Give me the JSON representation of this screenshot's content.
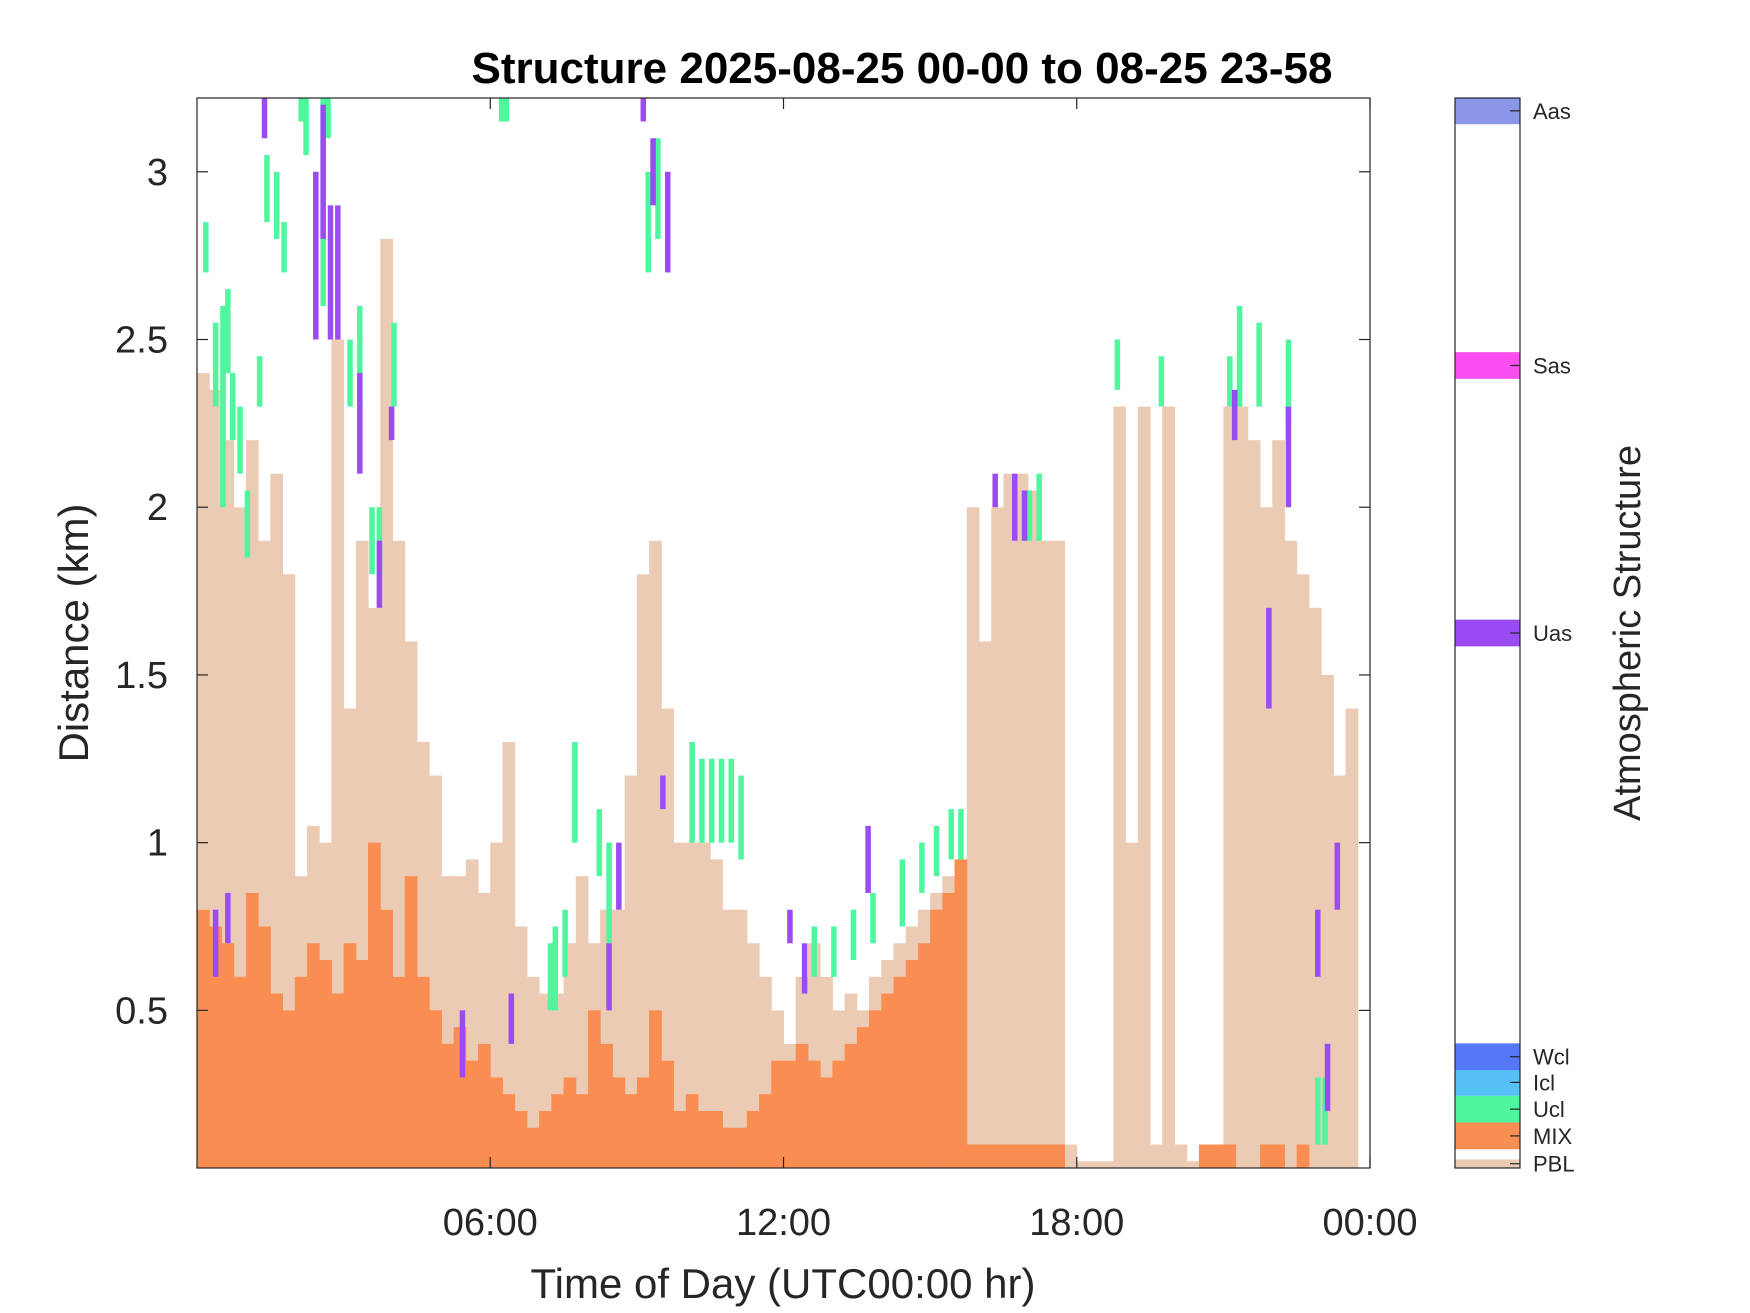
{
  "chart_data": {
    "type": "heatmap",
    "title": "Structure 2025-08-25 00-00 to 08-25 23-58",
    "xlabel": "Time of Day (UTC00:00 hr)",
    "ylabel": "Distance (km)",
    "xlim": [
      0,
      24
    ],
    "ylim": [
      0.03,
      3.22
    ],
    "x_ticks": [
      {
        "value": 6,
        "label": "06:00"
      },
      {
        "value": 12,
        "label": "12:00"
      },
      {
        "value": 18,
        "label": "18:00"
      },
      {
        "value": 24,
        "label": "00:00"
      }
    ],
    "y_ticks": [
      {
        "value": 0.5,
        "label": "0.5"
      },
      {
        "value": 1,
        "label": "1"
      },
      {
        "value": 1.5,
        "label": "1.5"
      },
      {
        "value": 2,
        "label": "2"
      },
      {
        "value": 2.5,
        "label": "2.5"
      },
      {
        "value": 3,
        "label": "3"
      }
    ],
    "colorbar": {
      "label": "Atmospheric Structure",
      "classes": [
        {
          "code": "PBL",
          "color": "#EBCBB4"
        },
        {
          "code": "MIX",
          "color": "#F98D52"
        },
        {
          "code": "Ucl",
          "color": "#4EF79E"
        },
        {
          "code": "Icl",
          "color": "#55C1F7"
        },
        {
          "code": "Wcl",
          "color": "#5478F7"
        },
        {
          "code": "Uas",
          "color": "#9B4BF4"
        },
        {
          "code": "Sas",
          "color": "#FA4FF0"
        },
        {
          "code": "Aas",
          "color": "#8A97E7"
        }
      ]
    },
    "pbl_top_km": [
      [
        0.0,
        2.4
      ],
      [
        0.25,
        2.35
      ],
      [
        0.5,
        2.2
      ],
      [
        0.75,
        2.0
      ],
      [
        1.0,
        2.2
      ],
      [
        1.25,
        1.9
      ],
      [
        1.5,
        2.1
      ],
      [
        1.75,
        1.8
      ],
      [
        2.0,
        0.9
      ],
      [
        2.25,
        1.05
      ],
      [
        2.5,
        1.0
      ],
      [
        2.75,
        2.5
      ],
      [
        3.0,
        1.4
      ],
      [
        3.25,
        1.9
      ],
      [
        3.5,
        1.7
      ],
      [
        3.75,
        2.8
      ],
      [
        4.0,
        1.9
      ],
      [
        4.25,
        1.6
      ],
      [
        4.5,
        1.3
      ],
      [
        4.75,
        1.2
      ],
      [
        5.0,
        0.9
      ],
      [
        5.25,
        0.9
      ],
      [
        5.5,
        0.95
      ],
      [
        5.75,
        0.85
      ],
      [
        6.0,
        1.0
      ],
      [
        6.25,
        1.3
      ],
      [
        6.5,
        0.75
      ],
      [
        6.75,
        0.6
      ],
      [
        7.0,
        0.55
      ],
      [
        7.25,
        0.55
      ],
      [
        7.5,
        0.7
      ],
      [
        7.75,
        0.9
      ],
      [
        8.0,
        0.7
      ],
      [
        8.25,
        0.8
      ],
      [
        8.5,
        0.8
      ],
      [
        8.75,
        1.2
      ],
      [
        9.0,
        1.8
      ],
      [
        9.25,
        1.9
      ],
      [
        9.5,
        1.4
      ],
      [
        9.75,
        1.0
      ],
      [
        10.0,
        1.0
      ],
      [
        10.25,
        1.0
      ],
      [
        10.5,
        0.95
      ],
      [
        10.75,
        0.8
      ],
      [
        11.0,
        0.8
      ],
      [
        11.25,
        0.7
      ],
      [
        11.5,
        0.6
      ],
      [
        11.75,
        0.5
      ],
      [
        12.0,
        0.4
      ],
      [
        12.25,
        0.6
      ],
      [
        12.5,
        0.7
      ],
      [
        12.75,
        0.6
      ],
      [
        13.0,
        0.5
      ],
      [
        13.25,
        0.55
      ],
      [
        13.5,
        0.5
      ],
      [
        13.75,
        0.6
      ],
      [
        14.0,
        0.65
      ],
      [
        14.25,
        0.7
      ],
      [
        14.5,
        0.75
      ],
      [
        14.75,
        0.8
      ],
      [
        15.0,
        0.85
      ],
      [
        15.25,
        0.9
      ],
      [
        15.5,
        0.95
      ],
      [
        15.75,
        2.0
      ],
      [
        16.0,
        1.6
      ],
      [
        16.25,
        2.0
      ],
      [
        16.5,
        2.1
      ],
      [
        16.75,
        2.1
      ],
      [
        17.0,
        2.05
      ],
      [
        17.25,
        1.9
      ],
      [
        17.5,
        1.9
      ],
      [
        17.75,
        0.1
      ],
      [
        18.0,
        0.05
      ],
      [
        18.25,
        0.05
      ],
      [
        18.5,
        0.05
      ],
      [
        18.75,
        2.3
      ],
      [
        19.0,
        1.0
      ],
      [
        19.25,
        2.3
      ],
      [
        19.5,
        0.1
      ],
      [
        19.75,
        2.3
      ],
      [
        20.0,
        0.1
      ],
      [
        20.25,
        0.05
      ],
      [
        20.5,
        0.1
      ],
      [
        20.75,
        0.1
      ],
      [
        21.0,
        2.3
      ],
      [
        21.25,
        2.3
      ],
      [
        21.5,
        2.2
      ],
      [
        21.75,
        2.0
      ],
      [
        22.0,
        2.2
      ],
      [
        22.25,
        1.9
      ],
      [
        22.5,
        1.8
      ],
      [
        22.75,
        1.7
      ],
      [
        23.0,
        1.5
      ],
      [
        23.25,
        1.2
      ],
      [
        23.5,
        1.4
      ]
    ],
    "mix_top_km": [
      [
        0.0,
        0.8
      ],
      [
        0.25,
        0.75
      ],
      [
        0.5,
        0.7
      ],
      [
        0.75,
        0.6
      ],
      [
        1.0,
        0.85
      ],
      [
        1.25,
        0.75
      ],
      [
        1.5,
        0.55
      ],
      [
        1.75,
        0.5
      ],
      [
        2.0,
        0.6
      ],
      [
        2.25,
        0.7
      ],
      [
        2.5,
        0.65
      ],
      [
        2.75,
        0.55
      ],
      [
        3.0,
        0.7
      ],
      [
        3.25,
        0.65
      ],
      [
        3.5,
        1.0
      ],
      [
        3.75,
        0.8
      ],
      [
        4.0,
        0.6
      ],
      [
        4.25,
        0.9
      ],
      [
        4.5,
        0.6
      ],
      [
        4.75,
        0.5
      ],
      [
        5.0,
        0.4
      ],
      [
        5.25,
        0.45
      ],
      [
        5.5,
        0.35
      ],
      [
        5.75,
        0.4
      ],
      [
        6.0,
        0.3
      ],
      [
        6.25,
        0.25
      ],
      [
        6.5,
        0.2
      ],
      [
        6.75,
        0.15
      ],
      [
        7.0,
        0.2
      ],
      [
        7.25,
        0.25
      ],
      [
        7.5,
        0.3
      ],
      [
        7.75,
        0.25
      ],
      [
        8.0,
        0.5
      ],
      [
        8.25,
        0.4
      ],
      [
        8.5,
        0.3
      ],
      [
        8.75,
        0.25
      ],
      [
        9.0,
        0.3
      ],
      [
        9.25,
        0.5
      ],
      [
        9.5,
        0.35
      ],
      [
        9.75,
        0.2
      ],
      [
        10.0,
        0.25
      ],
      [
        10.25,
        0.2
      ],
      [
        10.5,
        0.2
      ],
      [
        10.75,
        0.15
      ],
      [
        11.0,
        0.15
      ],
      [
        11.25,
        0.2
      ],
      [
        11.5,
        0.25
      ],
      [
        11.75,
        0.35
      ],
      [
        12.0,
        0.35
      ],
      [
        12.25,
        0.4
      ],
      [
        12.5,
        0.35
      ],
      [
        12.75,
        0.3
      ],
      [
        13.0,
        0.35
      ],
      [
        13.25,
        0.4
      ],
      [
        13.5,
        0.45
      ],
      [
        13.75,
        0.5
      ],
      [
        14.0,
        0.55
      ],
      [
        14.25,
        0.6
      ],
      [
        14.5,
        0.65
      ],
      [
        14.75,
        0.7
      ],
      [
        15.0,
        0.8
      ],
      [
        15.25,
        0.85
      ],
      [
        15.5,
        0.95
      ],
      [
        15.75,
        0.1
      ],
      [
        16.0,
        0.1
      ],
      [
        16.25,
        0.1
      ],
      [
        16.5,
        0.1
      ],
      [
        16.75,
        0.1
      ],
      [
        17.0,
        0.1
      ],
      [
        17.25,
        0.1
      ],
      [
        17.5,
        0.1
      ],
      [
        17.75,
        0.0
      ],
      [
        18.0,
        0.0
      ],
      [
        18.25,
        0.0
      ],
      [
        18.5,
        0.0
      ],
      [
        18.75,
        0.0
      ],
      [
        19.0,
        0.0
      ],
      [
        19.25,
        0.0
      ],
      [
        19.5,
        0.0
      ],
      [
        19.75,
        0.0
      ],
      [
        20.0,
        0.0
      ],
      [
        20.25,
        0.0
      ],
      [
        20.5,
        0.1
      ],
      [
        20.75,
        0.1
      ],
      [
        21.0,
        0.1
      ],
      [
        21.25,
        0.0
      ],
      [
        21.5,
        0.0
      ],
      [
        21.75,
        0.1
      ],
      [
        22.0,
        0.1
      ],
      [
        22.25,
        0.0
      ],
      [
        22.5,
        0.1
      ],
      [
        22.75,
        0.0
      ],
      [
        23.0,
        0.0
      ],
      [
        23.25,
        0.0
      ],
      [
        23.5,
        0.0
      ]
    ],
    "ucl_segments": [
      [
        0.05,
        2.7,
        2.85
      ],
      [
        0.25,
        2.3,
        2.55
      ],
      [
        0.4,
        2.0,
        2.6
      ],
      [
        0.5,
        2.4,
        2.65
      ],
      [
        0.6,
        2.2,
        2.4
      ],
      [
        0.75,
        2.1,
        2.3
      ],
      [
        0.9,
        1.85,
        2.05
      ],
      [
        1.15,
        2.3,
        2.45
      ],
      [
        1.3,
        2.85,
        3.05
      ],
      [
        1.5,
        2.8,
        3.0
      ],
      [
        1.65,
        2.7,
        2.85
      ],
      [
        2.0,
        3.15,
        3.22
      ],
      [
        2.1,
        3.05,
        3.22
      ],
      [
        2.45,
        2.6,
        3.22
      ],
      [
        2.55,
        3.1,
        3.22
      ],
      [
        3.0,
        2.3,
        2.5
      ],
      [
        3.2,
        2.3,
        2.6
      ],
      [
        3.45,
        1.8,
        2.0
      ],
      [
        3.6,
        1.8,
        2.0
      ],
      [
        3.9,
        2.3,
        2.55
      ],
      [
        6.1,
        3.15,
        3.22
      ],
      [
        6.2,
        3.15,
        3.22
      ],
      [
        7.1,
        0.5,
        0.7
      ],
      [
        7.2,
        0.5,
        0.75
      ],
      [
        7.4,
        0.6,
        0.8
      ],
      [
        7.6,
        1.0,
        1.3
      ],
      [
        8.1,
        0.9,
        1.1
      ],
      [
        8.3,
        0.7,
        1.0
      ],
      [
        9.1,
        2.7,
        3.0
      ],
      [
        9.3,
        2.8,
        3.1
      ],
      [
        10.0,
        1.0,
        1.3
      ],
      [
        10.2,
        1.0,
        1.25
      ],
      [
        10.4,
        1.0,
        1.25
      ],
      [
        10.6,
        1.0,
        1.25
      ],
      [
        10.8,
        1.0,
        1.25
      ],
      [
        11.0,
        0.95,
        1.2
      ],
      [
        12.5,
        0.6,
        0.75
      ],
      [
        12.9,
        0.6,
        0.75
      ],
      [
        13.3,
        0.65,
        0.8
      ],
      [
        13.7,
        0.7,
        0.85
      ],
      [
        14.3,
        0.75,
        0.95
      ],
      [
        14.7,
        0.85,
        1.0
      ],
      [
        15.0,
        0.9,
        1.05
      ],
      [
        15.3,
        0.95,
        1.1
      ],
      [
        15.5,
        0.95,
        1.1
      ],
      [
        16.9,
        1.9,
        2.05
      ],
      [
        17.1,
        1.9,
        2.1
      ],
      [
        18.7,
        2.35,
        2.5
      ],
      [
        19.6,
        2.3,
        2.45
      ],
      [
        21.0,
        2.3,
        2.45
      ],
      [
        21.2,
        2.3,
        2.6
      ],
      [
        21.6,
        2.3,
        2.55
      ],
      [
        22.2,
        2.25,
        2.5
      ],
      [
        22.8,
        0.1,
        0.3
      ],
      [
        22.95,
        0.1,
        0.3
      ]
    ],
    "uas_segments": [
      [
        0.25,
        0.6,
        0.8
      ],
      [
        0.5,
        0.7,
        0.85
      ],
      [
        1.25,
        3.1,
        3.22
      ],
      [
        2.3,
        2.5,
        3.0
      ],
      [
        2.45,
        2.8,
        3.2
      ],
      [
        2.6,
        2.5,
        2.9
      ],
      [
        2.75,
        2.5,
        2.9
      ],
      [
        3.2,
        2.1,
        2.4
      ],
      [
        3.6,
        1.7,
        1.9
      ],
      [
        3.85,
        2.2,
        2.3
      ],
      [
        5.3,
        0.3,
        0.5
      ],
      [
        6.3,
        0.4,
        0.55
      ],
      [
        8.3,
        0.5,
        0.7
      ],
      [
        8.5,
        0.8,
        1.0
      ],
      [
        9.0,
        3.15,
        3.22
      ],
      [
        9.2,
        2.9,
        3.1
      ],
      [
        9.4,
        1.1,
        1.2
      ],
      [
        9.5,
        2.7,
        3.0
      ],
      [
        12.0,
        0.7,
        0.8
      ],
      [
        12.3,
        0.55,
        0.7
      ],
      [
        13.6,
        0.85,
        1.05
      ],
      [
        16.2,
        2.0,
        2.1
      ],
      [
        16.6,
        1.9,
        2.1
      ],
      [
        16.8,
        1.9,
        2.05
      ],
      [
        21.1,
        2.2,
        2.35
      ],
      [
        21.8,
        1.4,
        1.7
      ],
      [
        22.2,
        2.0,
        2.3
      ],
      [
        22.8,
        0.6,
        0.8
      ],
      [
        23.0,
        0.2,
        0.4
      ],
      [
        23.2,
        0.8,
        1.0
      ]
    ]
  }
}
